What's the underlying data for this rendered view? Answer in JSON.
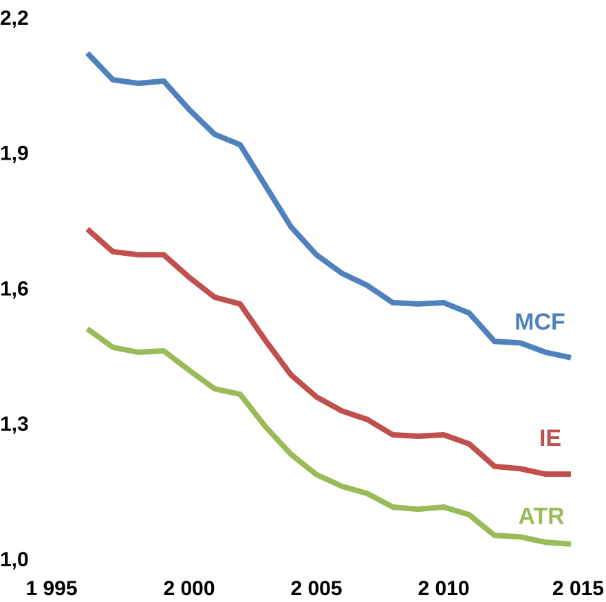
{
  "chart_data": {
    "type": "line",
    "x": [
      1996,
      1997,
      1998,
      1999,
      2000,
      2001,
      2002,
      2003,
      2004,
      2005,
      2006,
      2007,
      2008,
      2009,
      2010,
      2011,
      2012,
      2013,
      2014,
      2015
    ],
    "series": [
      {
        "name": "MCF",
        "color": "#4f81bd",
        "values": [
          2.125,
          2.066,
          2.058,
          2.063,
          2.0,
          1.945,
          1.922,
          1.831,
          1.74,
          1.678,
          1.637,
          1.61,
          1.572,
          1.569,
          1.572,
          1.549,
          1.486,
          1.483,
          1.462,
          1.45
        ]
      },
      {
        "name": "IE",
        "color": "#c0504d",
        "values": [
          1.735,
          1.685,
          1.678,
          1.678,
          1.628,
          1.584,
          1.569,
          1.488,
          1.412,
          1.363,
          1.332,
          1.313,
          1.279,
          1.276,
          1.279,
          1.259,
          1.209,
          1.204,
          1.192,
          1.192
        ]
      },
      {
        "name": "ATR",
        "color": "#9bbb59",
        "values": [
          1.514,
          1.473,
          1.462,
          1.465,
          1.422,
          1.381,
          1.369,
          1.297,
          1.236,
          1.191,
          1.165,
          1.149,
          1.119,
          1.114,
          1.119,
          1.102,
          1.056,
          1.053,
          1.041,
          1.037
        ]
      }
    ],
    "xlim": [
      1995,
      2015
    ],
    "xticks": [
      {
        "value": 1995,
        "label": "1 995"
      },
      {
        "value": 2000,
        "label": "2 000"
      },
      {
        "value": 2005,
        "label": "2 005"
      },
      {
        "value": 2010,
        "label": "2 010"
      },
      {
        "value": 2015,
        "label": "2 015"
      }
    ],
    "ylim": [
      1.0,
      2.2
    ],
    "yticks": [
      {
        "value": 1.0,
        "label": "1,0"
      },
      {
        "value": 1.3,
        "label": "1,3"
      },
      {
        "value": 1.6,
        "label": "1,6"
      },
      {
        "value": 1.9,
        "label": "1,9"
      },
      {
        "value": 2.2,
        "label": "2,2"
      }
    ]
  }
}
